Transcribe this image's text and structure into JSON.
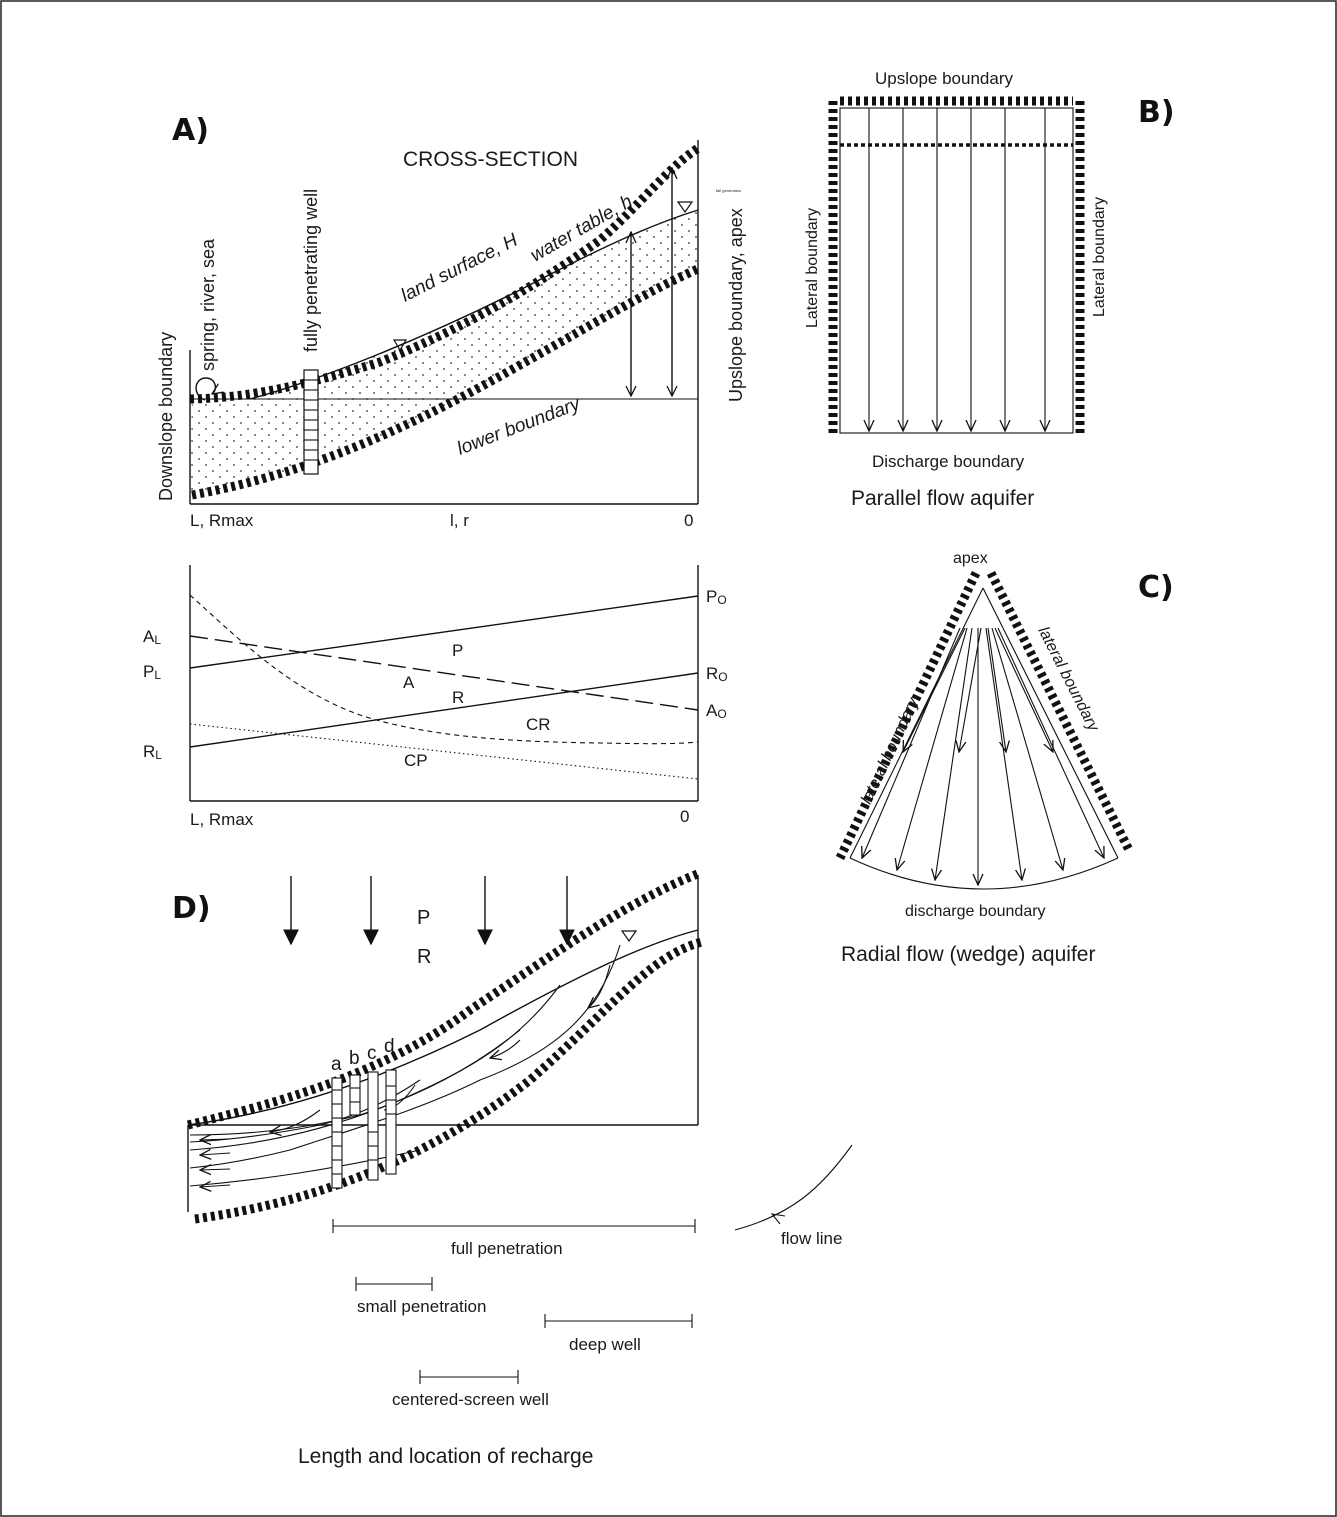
{
  "panel_labels": {
    "a": "A)",
    "b": "B)",
    "c": "C)",
    "d": "D)"
  },
  "panel_a": {
    "title": "CROSS-SECTION",
    "land_surface": "land surface, H",
    "water_table": "water table, h",
    "lower_boundary": "lower boundary",
    "well": "fully penetrating well",
    "spring": "spring, river, sea",
    "downslope": "Downslope boundary",
    "upslope": "Upslope boundary, apex",
    "x_left": "L, Rmax",
    "x_mid": "l, r",
    "x_right": "0"
  },
  "panel_a2": {
    "PO": "PO",
    "RO": "RO",
    "AO": "AO",
    "AL": "AL",
    "PL": "PL",
    "RL": "RL",
    "P": "P",
    "A": "A",
    "R": "R",
    "CR": "CR",
    "CP": "CP",
    "x_left": "L, Rmax",
    "x_right": "0"
  },
  "panel_b": {
    "upslope": "Upslope boundary",
    "lateral_left": "Lateral boundary",
    "lateral_right": "Lateral boundary",
    "discharge": "Discharge boundary",
    "caption": "Parallel flow aquifer"
  },
  "panel_c": {
    "apex": "apex",
    "lateral_left": "lateral boundary",
    "lateral_right": "lateral boundary",
    "discharge": "discharge boundary",
    "caption": "Radial flow (wedge) aquifer"
  },
  "panel_d": {
    "P": "P",
    "R": "R",
    "wells": [
      "a",
      "b",
      "c",
      "d"
    ],
    "full": "full penetration",
    "small": "small penetration",
    "deep": "deep well",
    "centered": "centered-screen well",
    "flow_line": "flow line",
    "caption": "Length and location of recharge"
  }
}
